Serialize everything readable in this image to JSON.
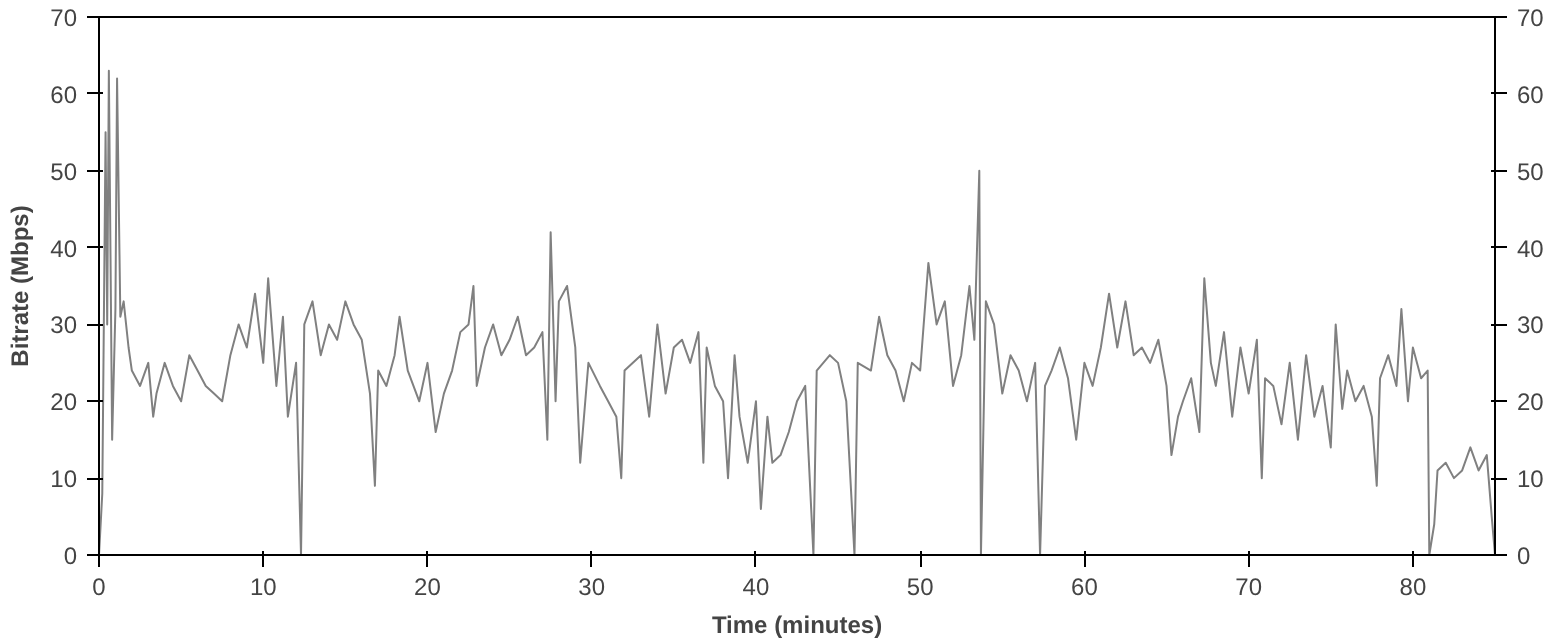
{
  "chart_data": {
    "type": "line",
    "xlabel": "Time (minutes)",
    "ylabel": "Bitrate (Mbps)",
    "xlim": [
      0,
      85
    ],
    "xticks": [
      0,
      10,
      20,
      30,
      40,
      50,
      60,
      70,
      80
    ],
    "ylim": [
      0,
      70
    ],
    "yticks": [
      0,
      10,
      20,
      30,
      40,
      50,
      60,
      70
    ],
    "y2lim": [
      0,
      70
    ],
    "y2ticks": [
      0,
      10,
      20,
      30,
      40,
      50,
      60,
      70
    ],
    "x": [
      0,
      0.2,
      0.4,
      0.5,
      0.6,
      0.8,
      1.0,
      1.1,
      1.3,
      1.5,
      1.8,
      2.0,
      2.5,
      3.0,
      3.3,
      3.5,
      4,
      4.5,
      5,
      5.5,
      6,
      6.5,
      7,
      7.5,
      8,
      8.5,
      9,
      9.5,
      10,
      10.3,
      10.8,
      11.2,
      11.5,
      12,
      12.3,
      12.5,
      13,
      13.5,
      14,
      14.5,
      15,
      15.5,
      16,
      16.5,
      16.8,
      17,
      17.5,
      18,
      18.3,
      18.8,
      19.5,
      20,
      20.5,
      21,
      21.5,
      22,
      22.5,
      22.8,
      23,
      23.5,
      24,
      24.5,
      25,
      25.5,
      26,
      26.5,
      27,
      27.3,
      27.5,
      27.8,
      28,
      28.5,
      29,
      29.3,
      29.8,
      30.5,
      31,
      31.5,
      31.8,
      32,
      33,
      33.5,
      34,
      34.5,
      35,
      35.5,
      36,
      36.5,
      36.8,
      37,
      37.5,
      38,
      38.3,
      38.7,
      39,
      39.5,
      40,
      40.3,
      40.7,
      41,
      41.5,
      42,
      42.5,
      43,
      43.5,
      43.7,
      44.5,
      45,
      45.5,
      46,
      46.2,
      47,
      47.5,
      48,
      48.5,
      49,
      49.5,
      50,
      50.5,
      51,
      51.5,
      52,
      52.5,
      53,
      53.3,
      53.6,
      53.7,
      54,
      54.5,
      55,
      55.5,
      56,
      56.5,
      57,
      57.3,
      57.6,
      58,
      58.5,
      59,
      59.5,
      60,
      60.5,
      61,
      61.5,
      62,
      62.5,
      63,
      63.5,
      64,
      64.5,
      65,
      65.3,
      65.7,
      66,
      66.5,
      67,
      67.3,
      67.7,
      68,
      68.5,
      69,
      69.5,
      70,
      70.5,
      70.8,
      71,
      71.5,
      72,
      72.5,
      73,
      73.5,
      74,
      74.5,
      75,
      75.3,
      75.7,
      76,
      76.5,
      77,
      77.5,
      77.8,
      78,
      78.5,
      79,
      79.3,
      79.7,
      80,
      80.5,
      80.9,
      81.0,
      81.3,
      81.5,
      82,
      82.5,
      83,
      83.5,
      84,
      84.5,
      84.8,
      85
    ],
    "series": [
      {
        "color": "#808080",
        "values": [
          0,
          8,
          55,
          30,
          63,
          15,
          32,
          62,
          31,
          33,
          27,
          24,
          22,
          25,
          18,
          21,
          25,
          22,
          20,
          26,
          24,
          22,
          21,
          20,
          26,
          30,
          27,
          34,
          25,
          36,
          22,
          31,
          18,
          25,
          0,
          30,
          33,
          26,
          30,
          28,
          33,
          30,
          28,
          21,
          9,
          24,
          22,
          26,
          31,
          24,
          20,
          25,
          16,
          21,
          24,
          29,
          30,
          35,
          22,
          27,
          30,
          26,
          28,
          31,
          26,
          27,
          29,
          15,
          42,
          20,
          33,
          35,
          27,
          12,
          25,
          22,
          20,
          18,
          10,
          24,
          26,
          18,
          30,
          21,
          27,
          28,
          25,
          29,
          12,
          27,
          22,
          20,
          10,
          26,
          18,
          12,
          20,
          6,
          18,
          12,
          13,
          16,
          20,
          22,
          0,
          24,
          26,
          25,
          20,
          0,
          25,
          24,
          31,
          26,
          24,
          20,
          25,
          24,
          38,
          30,
          33,
          22,
          26,
          35,
          28,
          50,
          0,
          33,
          30,
          21,
          26,
          24,
          20,
          25,
          0,
          22,
          24,
          27,
          23,
          15,
          25,
          22,
          27,
          34,
          27,
          33,
          26,
          27,
          25,
          28,
          22,
          13,
          18,
          20,
          23,
          16,
          36,
          25,
          22,
          29,
          18,
          27,
          21,
          28,
          10,
          23,
          22,
          17,
          25,
          15,
          26,
          18,
          22,
          14,
          30,
          19,
          24,
          20,
          22,
          18,
          9,
          23,
          26,
          22,
          32,
          20,
          27,
          23,
          24,
          0,
          4,
          11,
          12,
          10,
          11,
          14,
          11,
          13,
          5,
          0
        ]
      }
    ]
  }
}
